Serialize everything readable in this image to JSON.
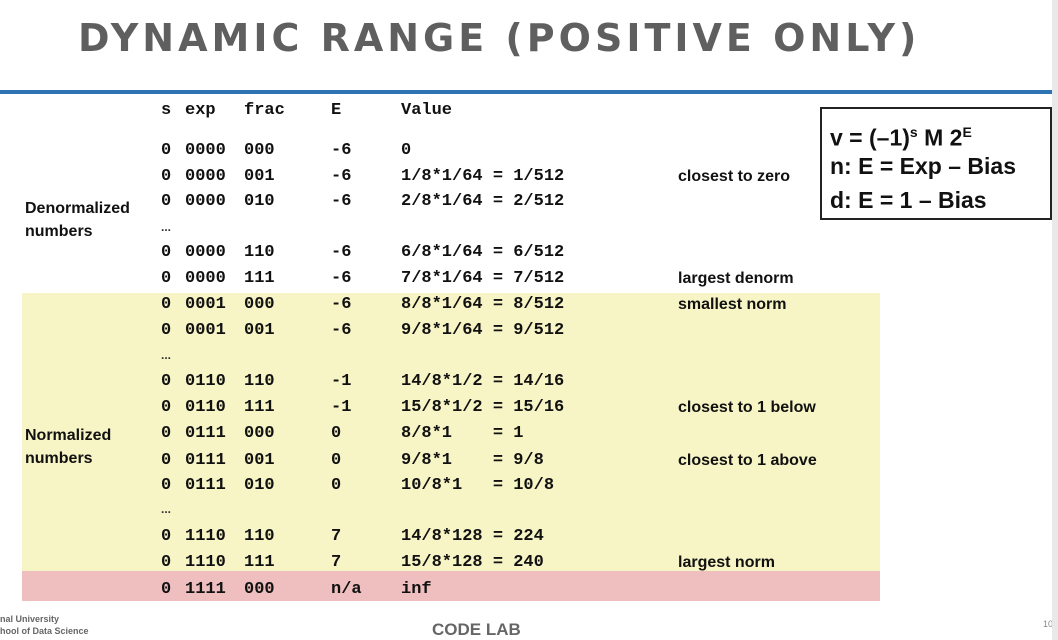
{
  "title": "DYNAMIC RANGE (POSITIVE ONLY)",
  "header": {
    "s": "s",
    "exp": "exp",
    "frac": "frac",
    "E": "E",
    "value": "Value"
  },
  "sections": {
    "denormalized": [
      "Denormalized",
      "numbers"
    ],
    "normalized": [
      "Normalized",
      "numbers"
    ]
  },
  "ellipsis": "...",
  "rows": [
    {
      "s": "0",
      "exp": "0000",
      "frac": "000",
      "E": "-6",
      "value": "0",
      "note": ""
    },
    {
      "s": "0",
      "exp": "0000",
      "frac": "001",
      "E": "-6",
      "value": "1/8*1/64 = 1/512",
      "note": "closest to zero"
    },
    {
      "s": "0",
      "exp": "0000",
      "frac": "010",
      "E": "-6",
      "value": "2/8*1/64 = 2/512",
      "note": ""
    },
    {
      "s": "0",
      "exp": "0000",
      "frac": "110",
      "E": "-6",
      "value": "6/8*1/64 = 6/512",
      "note": ""
    },
    {
      "s": "0",
      "exp": "0000",
      "frac": "111",
      "E": "-6",
      "value": "7/8*1/64 = 7/512",
      "note": "largest denorm"
    },
    {
      "s": "0",
      "exp": "0001",
      "frac": "000",
      "E": "-6",
      "value": "8/8*1/64 = 8/512",
      "note": "smallest norm"
    },
    {
      "s": "0",
      "exp": "0001",
      "frac": "001",
      "E": "-6",
      "value": "9/8*1/64 = 9/512",
      "note": ""
    },
    {
      "s": "0",
      "exp": "0110",
      "frac": "110",
      "E": "-1",
      "value": "14/8*1/2 = 14/16",
      "note": ""
    },
    {
      "s": "0",
      "exp": "0110",
      "frac": "111",
      "E": "-1",
      "value": "15/8*1/2 = 15/16",
      "note": "closest to 1 below"
    },
    {
      "s": "0",
      "exp": "0111",
      "frac": "000",
      "E": "0",
      "value": "8/8*1    = 1",
      "note": ""
    },
    {
      "s": "0",
      "exp": "0111",
      "frac": "001",
      "E": "0",
      "value": "9/8*1    = 9/8",
      "note": "closest to 1 above"
    },
    {
      "s": "0",
      "exp": "0111",
      "frac": "010",
      "E": "0",
      "value": "10/8*1   = 10/8",
      "note": ""
    },
    {
      "s": "0",
      "exp": "1110",
      "frac": "110",
      "E": "7",
      "value": "14/8*128 = 224",
      "note": ""
    },
    {
      "s": "0",
      "exp": "1110",
      "frac": "111",
      "E": "7",
      "value": "15/8*128 = 240",
      "note": "largest norm"
    },
    {
      "s": "0",
      "exp": "1111",
      "frac": "000",
      "E": "n/a",
      "value": "inf",
      "note": ""
    }
  ],
  "formula": {
    "line1_prefix": "v = (–1)",
    "line1_sup1": "s",
    "line1_mid": " M 2",
    "line1_sup2": "E",
    "line2": "n: E = Exp – Bias",
    "line3": "d: E = 1 – Bias"
  },
  "footer": {
    "left_line1": "nal University",
    "left_line2": "hool of Data Science",
    "center": "CODE LAB",
    "page": "10"
  },
  "colors": {
    "title": "#5f5f5f",
    "rule": "#2e74b5",
    "normalized_band": "#f7f4c5",
    "inf_band": "#eebfbe"
  }
}
